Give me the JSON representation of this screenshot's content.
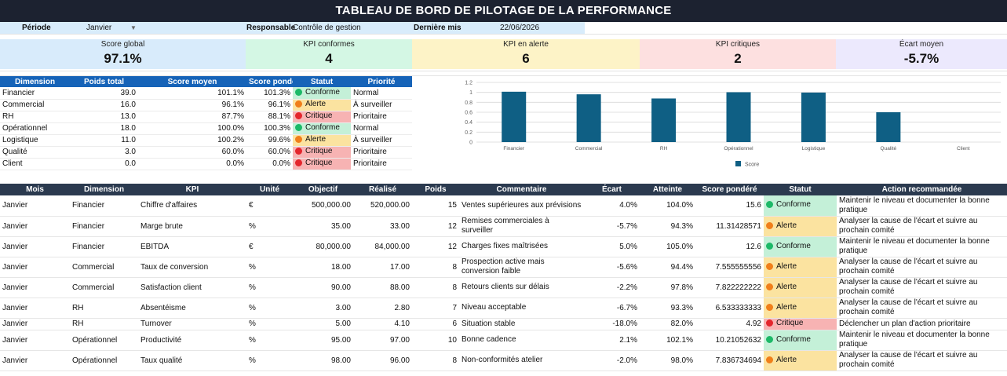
{
  "title": "TABLEAU DE BORD DE PILOTAGE DE LA PERFORMANCE",
  "meta": {
    "periode_label": "Période",
    "periode_value": "Janvier",
    "responsable_label": "Responsable",
    "responsable_value": "Contrôle de gestion",
    "derniere_label": "Dernière mis",
    "derniere_value": "22/06/2026"
  },
  "kpis": [
    {
      "label": "Score global",
      "value": "97.1%",
      "color": "#d8ebfb"
    },
    {
      "label": "KPI conformes",
      "value": "4",
      "color": "#d4f7e4"
    },
    {
      "label": "KPI en alerte",
      "value": "6",
      "color": "#fdf3c7"
    },
    {
      "label": "KPI critiques",
      "value": "2",
      "color": "#fde0e0"
    },
    {
      "label": "Écart moyen",
      "value": "-5.7%",
      "color": "#ece9fd"
    }
  ],
  "dimension_table": {
    "headers": [
      "Dimension",
      "Poids total",
      "Score moyen",
      "Score pondé",
      "Statut",
      "Priorité"
    ],
    "rows": [
      {
        "dimension": "Financier",
        "poids": "39.0",
        "score": "101.1%",
        "pondere": "101.3%",
        "statut": "Conforme",
        "priorite": "Normal"
      },
      {
        "dimension": "Commercial",
        "poids": "16.0",
        "score": "96.1%",
        "pondere": "96.1%",
        "statut": "Alerte",
        "priorite": "À surveiller"
      },
      {
        "dimension": "RH",
        "poids": "13.0",
        "score": "87.7%",
        "pondere": "88.1%",
        "statut": "Critique",
        "priorite": "Prioritaire"
      },
      {
        "dimension": "Opérationnel",
        "poids": "18.0",
        "score": "100.0%",
        "pondere": "100.3%",
        "statut": "Conforme",
        "priorite": "Normal"
      },
      {
        "dimension": "Logistique",
        "poids": "11.0",
        "score": "100.2%",
        "pondere": "99.6%",
        "statut": "Alerte",
        "priorite": "À surveiller"
      },
      {
        "dimension": "Qualité",
        "poids": "3.0",
        "score": "60.0%",
        "pondere": "60.0%",
        "statut": "Critique",
        "priorite": "Prioritaire"
      },
      {
        "dimension": "Client",
        "poids": "0.0",
        "score": "0.0%",
        "pondere": "0.0%",
        "statut": "Critique",
        "priorite": "Prioritaire"
      }
    ]
  },
  "chart_data": {
    "type": "bar",
    "categories": [
      "Financier",
      "Commercial",
      "RH",
      "Opérationnel",
      "Logistique",
      "Qualité",
      "Client"
    ],
    "series": [
      {
        "name": "Score",
        "values": [
          1.013,
          0.961,
          0.877,
          1.003,
          0.996,
          0.6,
          0.0
        ]
      }
    ],
    "ylim": [
      0,
      1.2
    ],
    "yticks": [
      "0",
      "0.2",
      "0.4",
      "0.6",
      "0.8",
      "1",
      "1.2"
    ],
    "grid": true,
    "legend": "bottom",
    "bar_color": "#0f5f84"
  },
  "main_table": {
    "headers": [
      "Mois",
      "Dimension",
      "KPI",
      "Unité",
      "Objectif",
      "Réalisé",
      "Poids",
      "Commentaire",
      "Écart",
      "Atteinte",
      "Score pondéré",
      "Statut",
      "Action recommandée"
    ],
    "rows": [
      {
        "mois": "Janvier",
        "dimension": "Financier",
        "kpi": "Chiffre d'affaires",
        "unite": "€",
        "objectif": "500,000.00",
        "realise": "520,000.00",
        "poids": "15",
        "commentaire": "Ventes supérieures aux prévisions",
        "ecart": "4.0%",
        "atteinte": "104.0%",
        "score": "15.6",
        "statut": "Conforme",
        "action": "Maintenir le niveau et documenter la bonne pratique"
      },
      {
        "mois": "Janvier",
        "dimension": "Financier",
        "kpi": "Marge brute",
        "unite": "%",
        "objectif": "35.00",
        "realise": "33.00",
        "poids": "12",
        "commentaire": "Remises commerciales à surveiller",
        "ecart": "-5.7%",
        "atteinte": "94.3%",
        "score": "11.31428571",
        "statut": "Alerte",
        "action": "Analyser la cause de l'écart et suivre au prochain comité"
      },
      {
        "mois": "Janvier",
        "dimension": "Financier",
        "kpi": "EBITDA",
        "unite": "€",
        "objectif": "80,000.00",
        "realise": "84,000.00",
        "poids": "12",
        "commentaire": "Charges fixes maîtrisées",
        "ecart": "5.0%",
        "atteinte": "105.0%",
        "score": "12.6",
        "statut": "Conforme",
        "action": "Maintenir le niveau et documenter la bonne pratique"
      },
      {
        "mois": "Janvier",
        "dimension": "Commercial",
        "kpi": "Taux de conversion",
        "unite": "%",
        "objectif": "18.00",
        "realise": "17.00",
        "poids": "8",
        "commentaire": "Prospection active mais conversion faible",
        "ecart": "-5.6%",
        "atteinte": "94.4%",
        "score": "7.555555556",
        "statut": "Alerte",
        "action": "Analyser la cause de l'écart et suivre au prochain comité"
      },
      {
        "mois": "Janvier",
        "dimension": "Commercial",
        "kpi": "Satisfaction client",
        "unite": "%",
        "objectif": "90.00",
        "realise": "88.00",
        "poids": "8",
        "commentaire": "Retours clients sur délais",
        "ecart": "-2.2%",
        "atteinte": "97.8%",
        "score": "7.822222222",
        "statut": "Alerte",
        "action": "Analyser la cause de l'écart et suivre au prochain comité"
      },
      {
        "mois": "Janvier",
        "dimension": "RH",
        "kpi": "Absentéisme",
        "unite": "%",
        "objectif": "3.00",
        "realise": "2.80",
        "poids": "7",
        "commentaire": "Niveau acceptable",
        "ecart": "-6.7%",
        "atteinte": "93.3%",
        "score": "6.533333333",
        "statut": "Alerte",
        "action": "Analyser la cause de l'écart et suivre au prochain comité"
      },
      {
        "mois": "Janvier",
        "dimension": "RH",
        "kpi": "Turnover",
        "unite": "%",
        "objectif": "5.00",
        "realise": "4.10",
        "poids": "6",
        "commentaire": "Situation stable",
        "ecart": "-18.0%",
        "atteinte": "82.0%",
        "score": "4.92",
        "statut": "Critique",
        "action": "Déclencher un plan d'action prioritaire"
      },
      {
        "mois": "Janvier",
        "dimension": "Opérationnel",
        "kpi": "Productivité",
        "unite": "%",
        "objectif": "95.00",
        "realise": "97.00",
        "poids": "10",
        "commentaire": "Bonne cadence",
        "ecart": "2.1%",
        "atteinte": "102.1%",
        "score": "10.21052632",
        "statut": "Conforme",
        "action": "Maintenir le niveau et documenter la bonne pratique"
      },
      {
        "mois": "Janvier",
        "dimension": "Opérationnel",
        "kpi": "Taux qualité",
        "unite": "%",
        "objectif": "98.00",
        "realise": "96.00",
        "poids": "8",
        "commentaire": "Non-conformités atelier",
        "ecart": "-2.0%",
        "atteinte": "98.0%",
        "score": "7.836734694",
        "statut": "Alerte",
        "action": "Analyser la cause de l'écart et suivre au prochain comité"
      }
    ]
  }
}
